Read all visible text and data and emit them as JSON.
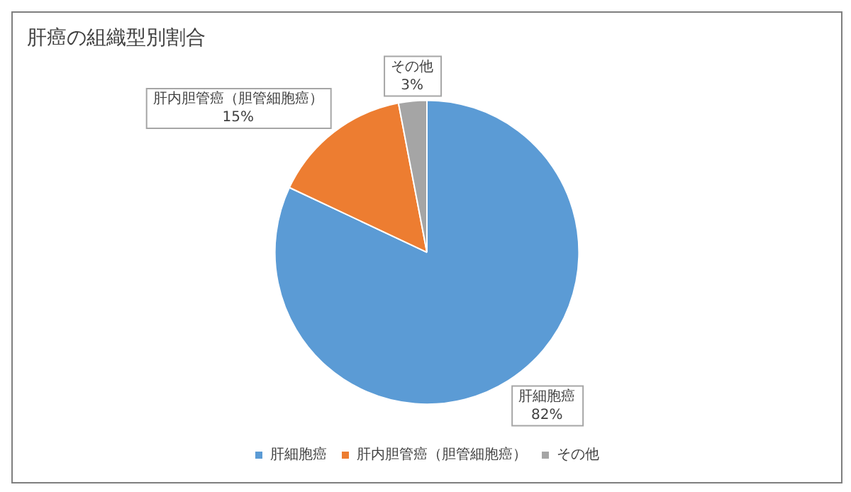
{
  "chart_data": {
    "type": "pie",
    "title": "肝癌の組織型別割合",
    "categories": [
      "肝細胞癌",
      "肝内胆管癌（胆管細胞癌）",
      "その他"
    ],
    "values": [
      82,
      15,
      3
    ],
    "colors": [
      "#5b9bd5",
      "#ed7d31",
      "#a5a5a5"
    ],
    "value_labels": [
      "82%",
      "15%",
      "3%"
    ],
    "legend": "bottom"
  }
}
